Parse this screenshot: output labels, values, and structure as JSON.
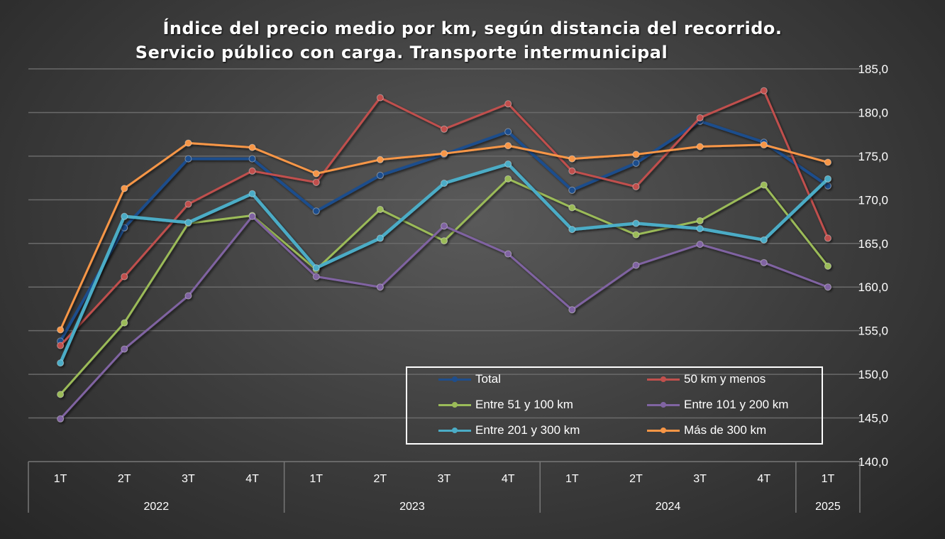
{
  "chart_data": {
    "type": "line",
    "title": "Índice del precio medio por km, según distancia del recorrido.",
    "subtitle": "Servicio público con carga. Transporte intermunicipal",
    "categories": [
      "1T",
      "2T",
      "3T",
      "4T",
      "1T",
      "2T",
      "3T",
      "4T",
      "1T",
      "2T",
      "3T",
      "4T",
      "1T"
    ],
    "year_groups": [
      {
        "label": "2022",
        "count": 4
      },
      {
        "label": "2023",
        "count": 4
      },
      {
        "label": "2024",
        "count": 4
      },
      {
        "label": "2025",
        "count": 1
      }
    ],
    "ylim": [
      140,
      185
    ],
    "yticks": [
      "140,0",
      "145,0",
      "150,0",
      "155,0",
      "160,0",
      "165,0",
      "170,0",
      "175,0",
      "180,0",
      "185,0"
    ],
    "y_axis_position": "right",
    "grid": true,
    "legend_position": "bottom-center",
    "series": [
      {
        "name": "Total",
        "color": "#1f4e8c",
        "values": [
          153.8,
          166.8,
          174.7,
          174.7,
          168.7,
          172.8,
          175.2,
          177.8,
          171.1,
          174.2,
          179.0,
          176.6,
          171.6
        ]
      },
      {
        "name": " 50 km y menos",
        "color": "#c0504d",
        "values": [
          153.3,
          161.2,
          169.5,
          173.3,
          172.0,
          181.7,
          178.1,
          181.0,
          173.3,
          171.5,
          179.4,
          182.5,
          165.6
        ]
      },
      {
        "name": "Entre 51 y 100 km",
        "color": "#9bbb59",
        "values": [
          147.7,
          155.9,
          167.3,
          168.2,
          162.0,
          168.9,
          165.3,
          172.4,
          169.1,
          166.0,
          167.6,
          171.7,
          162.4
        ]
      },
      {
        "name": "Entre 101 y 200 km",
        "color": "#8064a2",
        "values": [
          144.9,
          152.9,
          159.0,
          168.1,
          161.2,
          160.0,
          167.0,
          163.8,
          157.4,
          162.5,
          164.9,
          162.8,
          160.0
        ]
      },
      {
        "name": "Entre 201 y 300 km",
        "color": "#4bacc6",
        "values": [
          151.3,
          168.1,
          167.4,
          170.7,
          162.2,
          165.6,
          171.9,
          174.1,
          166.6,
          167.3,
          166.7,
          165.4,
          172.4
        ]
      },
      {
        "name": "Más de 300 km",
        "color": "#f79646",
        "values": [
          155.1,
          171.3,
          176.5,
          176.0,
          173.0,
          174.6,
          175.3,
          176.2,
          174.7,
          175.2,
          176.1,
          176.3,
          174.3
        ]
      }
    ]
  }
}
